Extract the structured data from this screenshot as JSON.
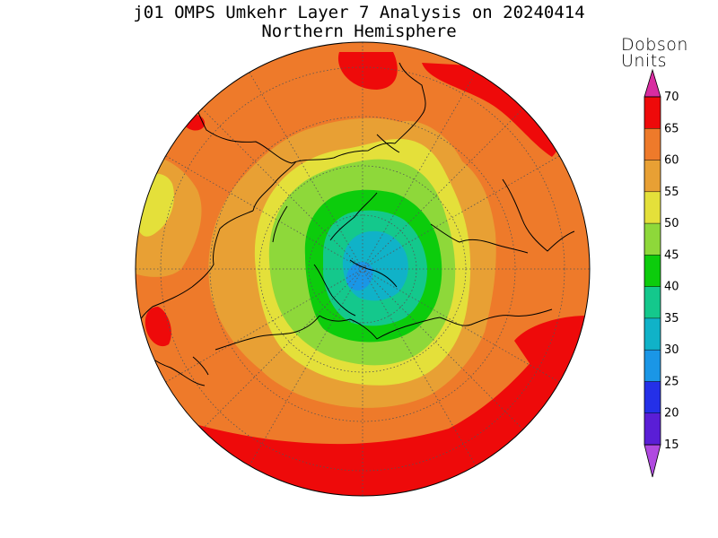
{
  "title": "j01 OMPS Umkehr Layer 7 Analysis on 20240414",
  "subtitle": "Northern Hemisphere",
  "colorbar": {
    "unit_line1": "Dobson",
    "unit_line2": "Units",
    "levels": [
      15,
      20,
      25,
      30,
      35,
      40,
      45,
      50,
      55,
      60,
      65,
      70
    ],
    "colors": [
      "#6a00c8",
      "#5a1ed6",
      "#2430e8",
      "#1a96e6",
      "#10b2c8",
      "#14c88c",
      "#0ccc0c",
      "#8ed83a",
      "#e4e03a",
      "#e8a034",
      "#ee7a2a",
      "#ee0a0a",
      "#e2259a"
    ],
    "lower_extend_color": "#b04ae0",
    "upper_extend_color": "#d82ca0"
  },
  "map": {
    "projection": "north polar stereographic",
    "hemisphere": "Northern Hemisphere",
    "colors": {
      "background": "#ee7a2a",
      "red": "#ee0a0a",
      "orange_light": "#e8a034",
      "yellow": "#e4e03a",
      "light_green": "#8ed83a",
      "green": "#0ccc0c",
      "teal": "#14c88c",
      "cyan": "#10b2c8",
      "blue": "#1a96e6"
    }
  }
}
